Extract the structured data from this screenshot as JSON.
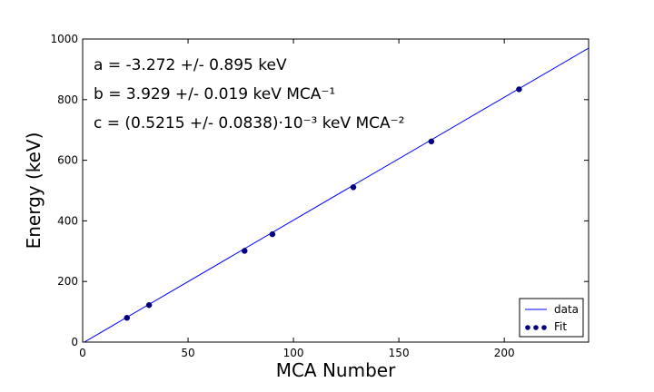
{
  "chart_data": {
    "type": "scatter",
    "title": "",
    "xlabel": "MCA Number",
    "ylabel": "Energy (keV)",
    "xlim": [
      0,
      240
    ],
    "ylim": [
      0,
      1000
    ],
    "x_ticks": [
      0,
      50,
      100,
      150,
      200
    ],
    "y_ticks": [
      0,
      200,
      400,
      600,
      800,
      1000
    ],
    "grid": false,
    "annotations": [
      "a = -3.272 +/- 0.895 keV",
      "b = 3.929 +/- 0.019 keV MCA⁻¹",
      "c = (0.5215 +/- 0.0838)·10⁻³ keV MCA⁻²"
    ],
    "series": [
      {
        "name": "data",
        "kind": "line",
        "color": "#0000ff",
        "x": [
          0,
          240
        ],
        "y": [
          -3.272,
          970
        ]
      },
      {
        "name": "Fit",
        "kind": "scatter",
        "color": "#000080",
        "x": [
          21,
          31.5,
          76.8,
          90,
          128.4,
          165.4,
          207
        ],
        "y": [
          80,
          122,
          301,
          356,
          511,
          662,
          834
        ]
      }
    ],
    "legend": {
      "placement": "lower-right",
      "entries": [
        "data",
        "Fit"
      ]
    }
  }
}
